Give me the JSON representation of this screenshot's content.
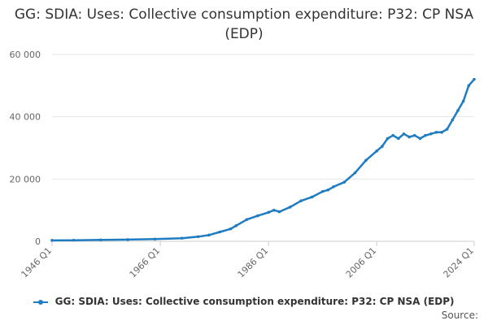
{
  "chart_data": {
    "type": "line",
    "title": "GG: SDIA: Uses: Collective consumption expenditure: P32: CP NSA (EDP)",
    "xlabel": "",
    "ylabel": "",
    "ylim": [
      0,
      60000
    ],
    "y_ticks": [
      0,
      20000,
      40000,
      60000
    ],
    "y_tick_labels": [
      "0",
      "20 000",
      "40 000",
      "60 000"
    ],
    "x_range": [
      1946,
      2024
    ],
    "x_ticks": [
      1946,
      1966,
      1986,
      2006,
      2024
    ],
    "x_tick_labels": [
      "1946 Q1",
      "1966 Q1",
      "1986 Q1",
      "2006 Q1",
      "2024 Q1"
    ],
    "grid": "horizontal",
    "legend_position": "bottom",
    "series": [
      {
        "name": "GG: SDIA: Uses: Collective consumption expenditure: P32: CP NSA (EDP)",
        "color": "#1f7cc1",
        "x": [
          1946,
          1950,
          1955,
          1960,
          1965,
          1970,
          1973,
          1975,
          1977,
          1979,
          1980,
          1982,
          1984,
          1986,
          1987,
          1988,
          1990,
          1992,
          1994,
          1996,
          1997,
          1998,
          2000,
          2002,
          2004,
          2006,
          2007,
          2008,
          2009,
          2010,
          2011,
          2012,
          2013,
          2014,
          2015,
          2016,
          2017,
          2018,
          2019,
          2020,
          2021,
          2022,
          2023,
          2024
        ],
        "y": [
          300,
          350,
          450,
          550,
          700,
          1000,
          1500,
          2000,
          3000,
          4000,
          5000,
          7000,
          8200,
          9300,
          10000,
          9500,
          11000,
          13000,
          14200,
          16000,
          16500,
          17500,
          19000,
          22000,
          26000,
          29000,
          30500,
          33000,
          34000,
          33000,
          34500,
          33500,
          34000,
          33000,
          34000,
          34500,
          35000,
          35000,
          36000,
          39000,
          42000,
          45000,
          50000,
          52000
        ]
      }
    ]
  },
  "footer": {
    "source_label": "Source:"
  }
}
